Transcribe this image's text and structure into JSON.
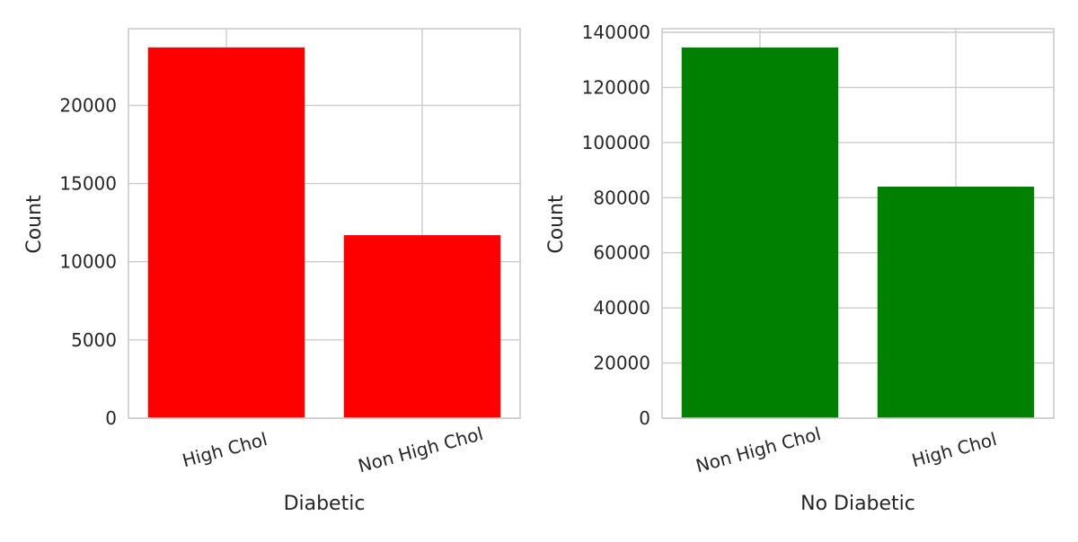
{
  "chart_data": [
    {
      "type": "bar",
      "title": "",
      "xlabel": "Diabetic",
      "ylabel": "Count",
      "categories": [
        "High Chol",
        "Non High Chol"
      ],
      "values": [
        23700,
        11700
      ],
      "ylim": [
        0,
        24900
      ],
      "yticks": [
        0,
        5000,
        10000,
        15000,
        20000
      ],
      "bar_color": "#ff0000",
      "grid": true
    },
    {
      "type": "bar",
      "title": "",
      "xlabel": "No Diabetic",
      "ylabel": "Count",
      "categories": [
        "Non High Chol",
        "High Chol"
      ],
      "values": [
        134500,
        84000
      ],
      "ylim": [
        0,
        141300
      ],
      "yticks": [
        0,
        20000,
        40000,
        60000,
        80000,
        100000,
        120000,
        140000
      ],
      "bar_color": "#008000",
      "grid": true
    }
  ],
  "style": {
    "grid_color": "#cccccc",
    "spine_color": "#cccccc",
    "text_color": "#262626"
  }
}
